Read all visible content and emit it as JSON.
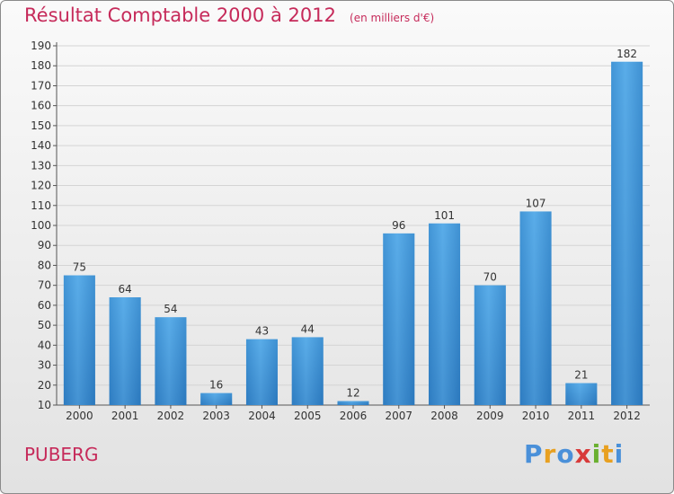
{
  "header": {
    "title": "Résultat Comptable 2000 à 2012",
    "subtitle": "(en milliers d'€)"
  },
  "footer": {
    "commune": "PUBERG",
    "logo_letters": [
      "P",
      "r",
      "o",
      "x",
      "i",
      "t",
      "i"
    ],
    "logo_colors": [
      "#4a90d9",
      "#e8a020",
      "#4a90d9",
      "#d83a3a",
      "#6ab030",
      "#e8a020",
      "#4a90d9"
    ]
  },
  "chart_data": {
    "type": "bar",
    "title": "Résultat Comptable 2000 à 2012",
    "subtitle": "(en milliers d'€)",
    "categories": [
      "2000",
      "2001",
      "2002",
      "2003",
      "2004",
      "2005",
      "2006",
      "2007",
      "2008",
      "2009",
      "2010",
      "2011",
      "2012"
    ],
    "values": [
      75,
      64,
      54,
      16,
      43,
      44,
      12,
      96,
      101,
      70,
      107,
      21,
      182
    ],
    "ylim": [
      10,
      190
    ],
    "yticks": [
      10,
      20,
      30,
      40,
      50,
      60,
      70,
      80,
      90,
      100,
      110,
      120,
      130,
      140,
      150,
      160,
      170,
      180,
      190
    ],
    "grid": true,
    "bar_color": "#3a8fd4"
  }
}
